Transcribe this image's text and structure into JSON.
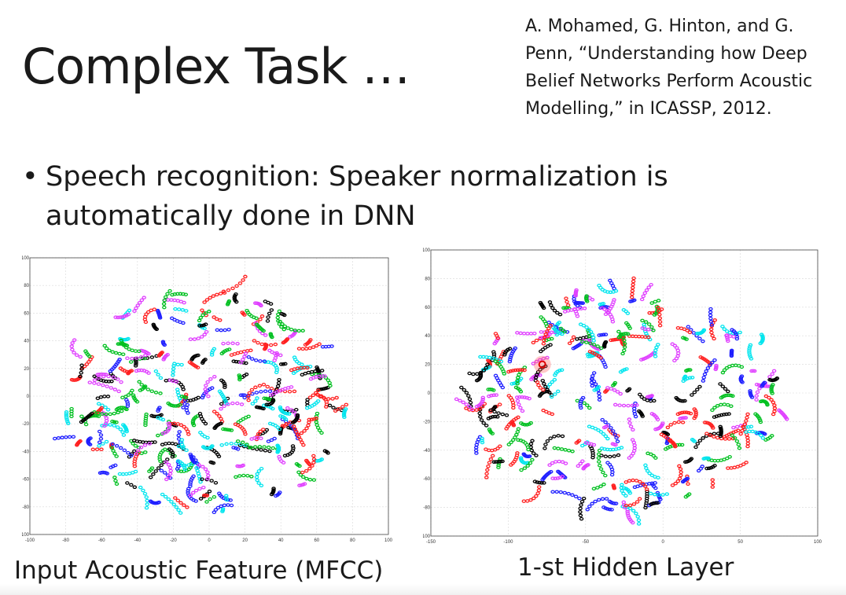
{
  "slide": {
    "title": "Complex Task …",
    "citation_lines": [
      "A. Mohamed, G. Hinton, and G.",
      "Penn, “Understanding how Deep",
      "Belief Networks Perform Acoustic",
      "Modelling,” in ICASSP, 2012."
    ],
    "bullet_lines": [
      "Speech recognition: Speaker normalization is",
      "automatically done in DNN"
    ]
  },
  "chart_data": [
    {
      "type": "scatter",
      "caption": "Input Acoustic Feature (MFCC)",
      "xlim": [
        -100,
        100
      ],
      "ylim": [
        -100,
        100
      ],
      "x_ticks": [
        -100,
        -80,
        -60,
        -40,
        -20,
        0,
        20,
        40,
        60,
        80,
        100
      ],
      "y_ticks": [
        -100,
        -80,
        -60,
        -40,
        -20,
        0,
        20,
        40,
        60,
        80,
        100
      ],
      "grid": true,
      "colors": [
        "#ff2020",
        "#1f1fff",
        "#00c020",
        "#000000",
        "#00e5ee",
        "#e040ff"
      ]
    },
    {
      "type": "scatter",
      "caption": "1-st Hidden Layer",
      "xlim": [
        -150,
        100
      ],
      "ylim": [
        -100,
        100
      ],
      "x_ticks": [
        -150,
        -100,
        -50,
        0,
        50,
        100
      ],
      "y_ticks": [
        -100,
        -80,
        -60,
        -40,
        -20,
        0,
        20,
        40,
        60,
        80,
        100
      ],
      "grid": true,
      "colors": [
        "#ff2020",
        "#1f1fff",
        "#00c020",
        "#000000",
        "#00e5ee",
        "#e040ff"
      ],
      "highlight_point": [
        -78,
        20
      ]
    }
  ]
}
